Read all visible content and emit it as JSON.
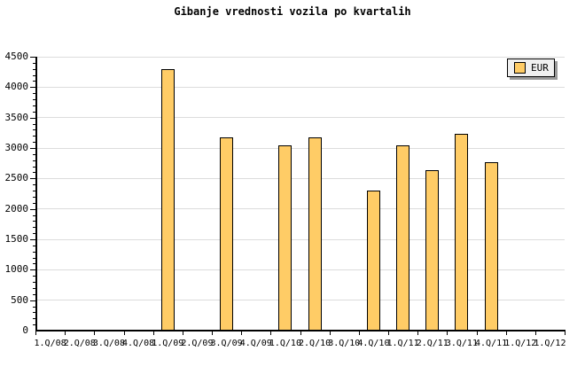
{
  "title": "Gibanje vrednosti vozila po kvartalih",
  "legend": {
    "label": "EUR"
  },
  "colors": {
    "bar_fill": "#FFCC66",
    "bar_border": "#000000",
    "gridline": "#DCDCDC",
    "axis": "#000000",
    "legend_bg": "#F0F0F0",
    "legend_shadow": "#999999",
    "background": "#FFFFFF"
  },
  "chart_data": {
    "type": "bar",
    "title": "Gibanje vrednosti vozila po kvartalih",
    "categories": [
      "1.Q/08",
      "2.Q/08",
      "3.Q/08",
      "4.Q/08",
      "1.Q/09",
      "2.Q/09",
      "3.Q/09",
      "4.Q/09",
      "1.Q/10",
      "2.Q/10",
      "3.Q/10",
      "4.Q/10",
      "1.Q/11",
      "2.Q/11",
      "3.Q/11",
      "4.Q/11",
      "1.Q/12",
      "1.Q/12"
    ],
    "series": [
      {
        "name": "EUR",
        "values": [
          null,
          null,
          null,
          null,
          4300,
          null,
          3170,
          null,
          3050,
          3170,
          null,
          2300,
          3050,
          2640,
          3240,
          2770,
          null,
          null
        ]
      }
    ],
    "xlabel": "",
    "ylabel": "",
    "ylim": [
      0,
      4500
    ],
    "ytick_major": 500,
    "ytick_minor": 100,
    "ytick_labels": [
      "0",
      "500",
      "1000",
      "1500",
      "2000",
      "2500",
      "3000",
      "3500",
      "4000",
      "4500"
    ],
    "grid": "horizontal-major",
    "legend_position": "top-right",
    "bar_color": "#FFCC66"
  }
}
